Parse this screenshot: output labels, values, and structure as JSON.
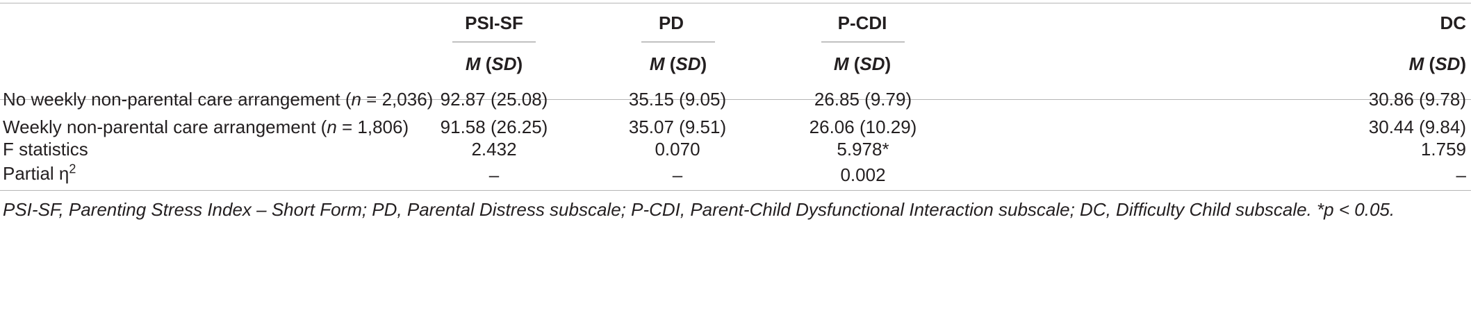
{
  "columns": [
    {
      "name": "PSI-SF",
      "stat_italic": "M",
      "stat_rest": " (",
      "stat_italic2": "SD",
      "stat_end": ")"
    },
    {
      "name": "PD",
      "stat_italic": "M",
      "stat_rest": " (",
      "stat_italic2": "SD",
      "stat_end": ")"
    },
    {
      "name": "P-CDI",
      "stat_italic": "M",
      "stat_rest": " (",
      "stat_italic2": "SD",
      "stat_end": ")"
    },
    {
      "name": "DC",
      "stat_italic": "M",
      "stat_rest": " (",
      "stat_italic2": "SD",
      "stat_end": ")"
    }
  ],
  "rows": [
    {
      "label_pre": "No weekly non-parental care arrangement (",
      "label_n": "n",
      "label_post": " = 2,036)",
      "values": [
        "92.87 (25.08)",
        "35.15 (9.05)",
        "26.85 (9.79)",
        "30.86 (9.78)"
      ]
    },
    {
      "label_pre": "Weekly non-parental care arrangement (",
      "label_n": "n",
      "label_post": " = 1,806)",
      "values": [
        "91.58 (26.25)",
        "35.07 (9.51)",
        "26.06 (10.29)",
        "30.44 (9.84)"
      ]
    },
    {
      "label_pre": "F statistics",
      "label_n": "",
      "label_post": "",
      "values": [
        "2.432",
        "0.070",
        "5.978*",
        "1.759"
      ]
    },
    {
      "label_pre": "Partial η",
      "label_sup": "2",
      "label_n": "",
      "label_post": "",
      "values": [
        "–",
        "–",
        "0.002",
        "–"
      ]
    }
  ],
  "note": "PSI-SF, Parenting Stress Index – Short Form; PD, Parental Distress subscale; P-CDI, Parent-Child Dysfunctional Interaction subscale; DC, Difficulty Child subscale. *p < 0.05."
}
